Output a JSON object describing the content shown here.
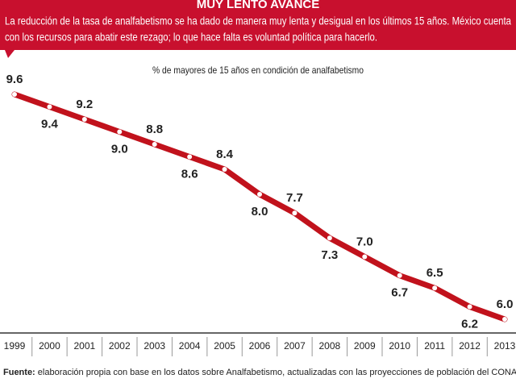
{
  "chart_data": {
    "type": "line",
    "title": "MUY LENTO AVANCE",
    "description": [
      "La reducción de la tasa de analfabetismo se ha dado de manera muy lenta y desigual en los últimos 15 años. México cuenta",
      "con los recursos para abatir este rezago; lo que hace falta es voluntad política para hacerlo."
    ],
    "subtitle": "% de mayores de 15 años en condición de analfabetismo",
    "categories": [
      "1999",
      "2000",
      "2001",
      "2002",
      "2003",
      "2004",
      "2005",
      "2006",
      "2007",
      "2008",
      "2009",
      "2010",
      "2011",
      "2012",
      "2013"
    ],
    "values": [
      9.6,
      9.4,
      9.2,
      9.0,
      8.8,
      8.6,
      8.4,
      8.0,
      7.7,
      7.3,
      7.0,
      6.7,
      6.5,
      6.2,
      6.0
    ],
    "value_labels": [
      "9.6",
      "9.4",
      "9.2",
      "9.0",
      "8.8",
      "8.6",
      "8.4",
      "8.0",
      "7.7",
      "7.3",
      "7.0",
      "6.7",
      "6.5",
      "6.2",
      "6.0"
    ],
    "color": "#c1121c",
    "source_label": "Fuente:",
    "source": "elaboración propia con base en los datos sobre Analfabetismo, actualizadas con las proyecciones de población del CONAPO, www.inea.gob.mx"
  }
}
